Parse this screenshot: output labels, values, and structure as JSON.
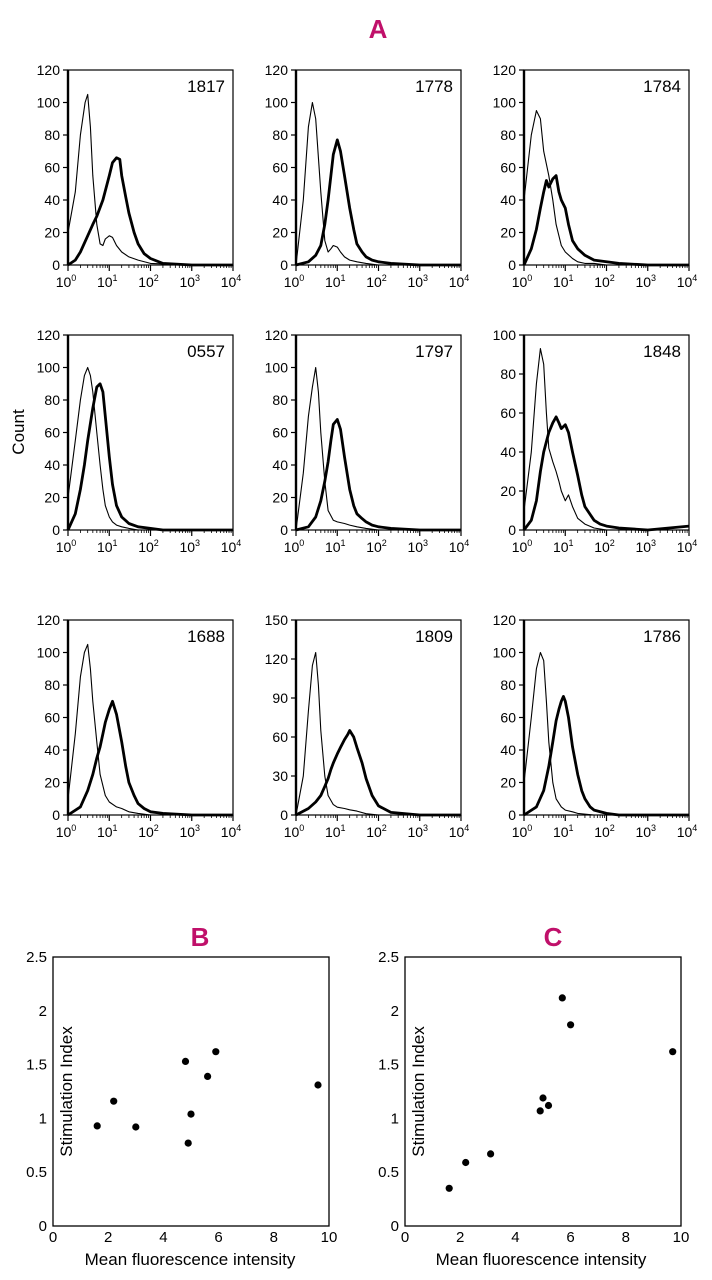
{
  "panels": {
    "A": "A",
    "B": "B",
    "C": "C"
  },
  "colors": {
    "panel_label": "#c0106a",
    "ink": "#000000",
    "grid_bg": "#ffffff"
  },
  "histogram_y_label": "Count",
  "histogram_x_ticks": [
    {
      "base": "10",
      "exp": "0"
    },
    {
      "base": "10",
      "exp": "1"
    },
    {
      "base": "10",
      "exp": "2"
    },
    {
      "base": "10",
      "exp": "3"
    },
    {
      "base": "10",
      "exp": "4"
    }
  ],
  "chart_data": [
    {
      "type": "line",
      "panel": "A",
      "sample": "1817",
      "xscale": "log",
      "xlim": [
        1,
        10000
      ],
      "ylim": [
        0,
        120
      ],
      "yticks": [
        0,
        20,
        40,
        60,
        80,
        100,
        120
      ],
      "series": [
        {
          "name": "control",
          "style": "thin",
          "x": [
            1,
            1.5,
            2,
            2.6,
            3,
            3.5,
            4,
            5,
            6,
            7,
            8,
            10,
            12,
            15,
            20,
            30,
            50,
            100,
            1000,
            10000
          ],
          "y": [
            20,
            45,
            80,
            100,
            105,
            85,
            55,
            25,
            13,
            12,
            16,
            18,
            17,
            12,
            8,
            5,
            3,
            1,
            0,
            0
          ]
        },
        {
          "name": "stained",
          "style": "thick",
          "x": [
            1,
            1.5,
            2,
            3,
            4,
            5,
            7,
            10,
            12,
            15,
            18,
            20,
            25,
            30,
            40,
            50,
            70,
            100,
            200,
            1000,
            10000
          ],
          "y": [
            0,
            3,
            8,
            18,
            25,
            30,
            40,
            55,
            63,
            66,
            65,
            55,
            42,
            32,
            20,
            13,
            7,
            4,
            1,
            0,
            0
          ]
        }
      ]
    },
    {
      "type": "line",
      "panel": "A",
      "sample": "1778",
      "xscale": "log",
      "xlim": [
        1,
        10000
      ],
      "ylim": [
        0,
        120
      ],
      "yticks": [
        0,
        20,
        40,
        60,
        80,
        100,
        120
      ],
      "series": [
        {
          "name": "control",
          "style": "thin",
          "x": [
            1,
            1.5,
            2,
            2.5,
            3,
            4,
            5,
            6,
            7,
            8,
            10,
            12,
            15,
            20,
            30,
            50,
            100,
            1000,
            10000
          ],
          "y": [
            0,
            40,
            85,
            100,
            90,
            45,
            15,
            8,
            10,
            12,
            11,
            8,
            5,
            3,
            2,
            1,
            0,
            0,
            0
          ]
        },
        {
          "name": "stained",
          "style": "thick",
          "x": [
            1,
            2,
            3,
            4,
            5,
            6,
            7,
            8,
            10,
            12,
            15,
            20,
            25,
            30,
            40,
            50,
            70,
            100,
            200,
            1000,
            10000
          ],
          "y": [
            0,
            2,
            6,
            12,
            25,
            40,
            55,
            68,
            77,
            70,
            55,
            35,
            22,
            13,
            8,
            5,
            3,
            2,
            1,
            0,
            0
          ]
        }
      ]
    },
    {
      "type": "line",
      "panel": "A",
      "sample": "1784",
      "xscale": "log",
      "xlim": [
        1,
        10000
      ],
      "ylim": [
        0,
        120
      ],
      "yticks": [
        0,
        20,
        40,
        60,
        80,
        100,
        120
      ],
      "series": [
        {
          "name": "control",
          "style": "thin",
          "x": [
            1,
            1.5,
            2,
            2.5,
            3,
            4,
            5,
            6,
            7,
            8,
            10,
            15,
            20,
            30,
            50,
            100,
            1000,
            10000
          ],
          "y": [
            40,
            80,
            95,
            90,
            70,
            55,
            40,
            25,
            18,
            12,
            8,
            4,
            2,
            1,
            1,
            0,
            0,
            0
          ]
        },
        {
          "name": "stained",
          "style": "thick",
          "x": [
            1,
            1.5,
            2,
            2.5,
            3,
            3.5,
            4,
            5,
            6,
            7,
            8,
            10,
            12,
            15,
            20,
            30,
            50,
            100,
            200,
            1000,
            10000
          ],
          "y": [
            0,
            10,
            22,
            35,
            45,
            52,
            48,
            53,
            55,
            45,
            40,
            35,
            25,
            15,
            10,
            6,
            3,
            2,
            1,
            0,
            0
          ]
        }
      ]
    },
    {
      "type": "line",
      "panel": "A",
      "sample": "0557",
      "xscale": "log",
      "xlim": [
        1,
        10000
      ],
      "ylim": [
        0,
        120
      ],
      "yticks": [
        0,
        20,
        40,
        60,
        80,
        100,
        120
      ],
      "series": [
        {
          "name": "control",
          "style": "thin",
          "x": [
            1,
            1.5,
            2,
            2.5,
            3,
            3.5,
            4,
            5,
            6,
            7,
            8,
            10,
            12,
            15,
            20,
            30,
            50,
            100,
            1000,
            10000
          ],
          "y": [
            20,
            55,
            80,
            95,
            100,
            95,
            85,
            60,
            40,
            25,
            15,
            8,
            5,
            3,
            2,
            1,
            0,
            0,
            0,
            0
          ]
        },
        {
          "name": "stained",
          "style": "thick",
          "x": [
            1,
            1.5,
            2,
            2.5,
            3,
            4,
            5,
            6,
            7,
            8,
            10,
            12,
            15,
            20,
            30,
            50,
            100,
            200,
            1000,
            10000
          ],
          "y": [
            0,
            10,
            25,
            40,
            55,
            75,
            88,
            90,
            85,
            70,
            45,
            28,
            15,
            8,
            4,
            2,
            1,
            0,
            0,
            0
          ]
        }
      ]
    },
    {
      "type": "line",
      "panel": "A",
      "sample": "1797",
      "xscale": "log",
      "xlim": [
        1,
        10000
      ],
      "ylim": [
        0,
        120
      ],
      "yticks": [
        0,
        20,
        40,
        60,
        80,
        100,
        120
      ],
      "series": [
        {
          "name": "control",
          "style": "thin",
          "x": [
            1,
            1.5,
            2,
            2.5,
            3,
            3.5,
            4,
            5,
            6,
            8,
            10,
            15,
            20,
            30,
            50,
            100,
            1000,
            10000
          ],
          "y": [
            0,
            35,
            70,
            88,
            100,
            85,
            60,
            30,
            12,
            6,
            5,
            4,
            3,
            2,
            1,
            0,
            0,
            0
          ]
        },
        {
          "name": "stained",
          "style": "thick",
          "x": [
            1,
            2,
            3,
            4,
            5,
            6,
            7,
            8,
            10,
            12,
            15,
            20,
            25,
            30,
            40,
            50,
            70,
            100,
            200,
            1000,
            10000
          ],
          "y": [
            0,
            2,
            8,
            18,
            30,
            42,
            55,
            65,
            68,
            62,
            45,
            25,
            15,
            10,
            7,
            5,
            3,
            2,
            1,
            0,
            0
          ]
        }
      ]
    },
    {
      "type": "line",
      "panel": "A",
      "sample": "1848",
      "xscale": "log",
      "xlim": [
        1,
        10000
      ],
      "ylim": [
        0,
        100
      ],
      "yticks": [
        0,
        20,
        40,
        60,
        80,
        100
      ],
      "series": [
        {
          "name": "control",
          "style": "thin",
          "x": [
            1,
            1.5,
            2,
            2.5,
            3,
            3.5,
            4,
            5,
            6,
            7,
            8,
            10,
            12,
            15,
            20,
            30,
            50,
            100,
            1000,
            10000
          ],
          "y": [
            10,
            40,
            75,
            93,
            85,
            60,
            42,
            35,
            30,
            25,
            20,
            15,
            18,
            12,
            6,
            3,
            1,
            0,
            0,
            0
          ]
        },
        {
          "name": "stained",
          "style": "thick",
          "x": [
            1,
            1.5,
            2,
            2.5,
            3,
            4,
            5,
            6,
            7,
            8,
            10,
            12,
            15,
            20,
            25,
            30,
            40,
            50,
            70,
            100,
            200,
            1000,
            10000
          ],
          "y": [
            0,
            5,
            15,
            30,
            40,
            50,
            55,
            58,
            55,
            52,
            54,
            50,
            40,
            28,
            18,
            12,
            8,
            5,
            3,
            2,
            1,
            0,
            2
          ]
        }
      ]
    },
    {
      "type": "line",
      "panel": "A",
      "sample": "1688",
      "xscale": "log",
      "xlim": [
        1,
        10000
      ],
      "ylim": [
        0,
        120
      ],
      "yticks": [
        0,
        20,
        40,
        60,
        80,
        100,
        120
      ],
      "series": [
        {
          "name": "control",
          "style": "thin",
          "x": [
            1,
            1.5,
            2,
            2.5,
            3,
            3.5,
            4,
            5,
            6,
            8,
            10,
            15,
            20,
            30,
            50,
            100,
            1000,
            10000
          ],
          "y": [
            10,
            50,
            85,
            100,
            105,
            90,
            70,
            45,
            25,
            12,
            8,
            5,
            4,
            2,
            1,
            0,
            0,
            0
          ]
        },
        {
          "name": "stained",
          "style": "thick",
          "x": [
            1,
            2,
            3,
            4,
            5,
            6,
            7,
            8,
            10,
            12,
            15,
            20,
            25,
            30,
            40,
            50,
            70,
            100,
            200,
            1000,
            10000
          ],
          "y": [
            0,
            5,
            15,
            25,
            35,
            42,
            50,
            57,
            65,
            70,
            62,
            45,
            30,
            20,
            12,
            7,
            4,
            2,
            1,
            0,
            0
          ]
        }
      ]
    },
    {
      "type": "line",
      "panel": "A",
      "sample": "1809",
      "xscale": "log",
      "xlim": [
        1,
        10000
      ],
      "ylim": [
        0,
        150
      ],
      "yticks": [
        0,
        30,
        60,
        90,
        120,
        150
      ],
      "series": [
        {
          "name": "control",
          "style": "thin",
          "x": [
            1,
            1.5,
            2,
            2.5,
            3,
            3.5,
            4,
            5,
            6,
            8,
            10,
            15,
            20,
            30,
            50,
            100,
            1000,
            10000
          ],
          "y": [
            0,
            30,
            80,
            115,
            125,
            100,
            65,
            30,
            15,
            8,
            6,
            5,
            4,
            3,
            1,
            0,
            0,
            0
          ]
        },
        {
          "name": "stained",
          "style": "thick",
          "x": [
            1,
            2,
            3,
            4,
            5,
            6,
            7,
            8,
            10,
            12,
            15,
            18,
            20,
            25,
            30,
            40,
            50,
            70,
            100,
            200,
            1000,
            10000
          ],
          "y": [
            0,
            5,
            10,
            15,
            22,
            28,
            35,
            40,
            47,
            52,
            58,
            62,
            65,
            60,
            52,
            40,
            28,
            15,
            7,
            2,
            0,
            0
          ]
        }
      ]
    },
    {
      "type": "line",
      "panel": "A",
      "sample": "1786",
      "xscale": "log",
      "xlim": [
        1,
        10000
      ],
      "ylim": [
        0,
        120
      ],
      "yticks": [
        0,
        20,
        40,
        60,
        80,
        100,
        120
      ],
      "series": [
        {
          "name": "control",
          "style": "thin",
          "x": [
            1,
            1.5,
            2,
            2.5,
            3,
            3.5,
            4,
            5,
            6,
            8,
            10,
            15,
            20,
            50,
            100,
            1000,
            10000
          ],
          "y": [
            20,
            60,
            90,
            100,
            95,
            70,
            45,
            20,
            10,
            5,
            3,
            2,
            1,
            0,
            0,
            0,
            0
          ]
        },
        {
          "name": "stained",
          "style": "thick",
          "x": [
            1,
            2,
            3,
            4,
            5,
            6,
            7,
            8,
            9,
            10,
            12,
            15,
            20,
            25,
            30,
            40,
            50,
            100,
            200,
            1000,
            10000
          ],
          "y": [
            0,
            5,
            15,
            30,
            45,
            58,
            65,
            70,
            73,
            70,
            60,
            42,
            25,
            15,
            10,
            5,
            3,
            1,
            0,
            0,
            0
          ]
        }
      ]
    },
    {
      "type": "scatter",
      "panel": "B",
      "title": "B",
      "xlabel": "Mean fluorescence intensity",
      "ylabel": "Stimulation Index",
      "xlim": [
        0,
        10
      ],
      "ylim": [
        0,
        2.5
      ],
      "xticks": [
        "0",
        "2",
        "4",
        "6",
        "8",
        "10"
      ],
      "yticks": [
        "0",
        "0.5",
        "1",
        "1.5",
        "2",
        "2.5"
      ],
      "x": [
        1.6,
        2.2,
        3.0,
        4.8,
        4.9,
        5.0,
        5.6,
        5.9,
        9.6
      ],
      "y": [
        0.93,
        1.16,
        0.92,
        1.53,
        0.77,
        1.04,
        1.39,
        1.62,
        1.31
      ]
    },
    {
      "type": "scatter",
      "panel": "C",
      "title": "C",
      "xlabel": "Mean fluorescence intensity",
      "ylabel": "Stimulation Index",
      "xlim": [
        0,
        10
      ],
      "ylim": [
        0,
        2.5
      ],
      "xticks": [
        "0",
        "2",
        "4",
        "6",
        "8",
        "10"
      ],
      "yticks": [
        "0",
        "0.5",
        "1",
        "1.5",
        "2",
        "2.5"
      ],
      "x": [
        1.6,
        2.2,
        3.1,
        4.9,
        5.0,
        5.2,
        5.7,
        6.0,
        9.7
      ],
      "y": [
        0.35,
        0.59,
        0.67,
        1.07,
        1.19,
        1.12,
        2.12,
        1.87,
        1.62
      ]
    }
  ]
}
